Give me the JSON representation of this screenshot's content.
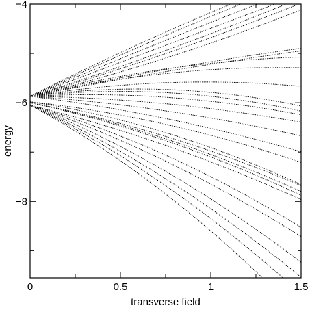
{
  "chart_data": {
    "type": "line",
    "title": "",
    "xlabel": "transverse field",
    "ylabel": "energy",
    "xlim": [
      0,
      1.5
    ],
    "ylim": [
      -9.55,
      -4.0
    ],
    "x_ticks": [
      {
        "value": 0,
        "label": "0"
      },
      {
        "value": 0.5,
        "label": "0.5"
      },
      {
        "value": 1,
        "label": "1"
      },
      {
        "value": 1.5,
        "label": "1.5"
      }
    ],
    "x_minor_ticks": [
      0.25,
      0.75,
      1.25
    ],
    "y_ticks": [
      {
        "value": -4,
        "label": "−4"
      },
      {
        "value": -6,
        "label": "−6"
      },
      {
        "value": -8,
        "label": "−8"
      }
    ],
    "y_minor_ticks": [
      -5,
      -7,
      -9
    ],
    "grid": false,
    "line_style": "dotted",
    "line_color": "#000000",
    "curve_model": "energy(x) = e0 + a*x + b*x^2",
    "series": [
      {
        "e0": -5.87,
        "a": 1.85,
        "b": -0.15
      },
      {
        "e0": -5.87,
        "a": 1.72,
        "b": -0.1
      },
      {
        "e0": -5.87,
        "a": 1.55,
        "b": -0.05
      },
      {
        "e0": -5.87,
        "a": 1.38,
        "b": 0.0
      },
      {
        "e0": -5.87,
        "a": 1.15,
        "b": 0.12
      },
      {
        "e0": -5.87,
        "a": 1.05,
        "b": 0.14
      },
      {
        "e0": -5.87,
        "a": 0.9,
        "b": 0.18
      },
      {
        "e0": -5.87,
        "a": 0.8,
        "b": -0.1
      },
      {
        "e0": -5.87,
        "a": 0.72,
        "b": -0.07
      },
      {
        "e0": -5.87,
        "a": 0.95,
        "b": -0.28
      },
      {
        "e0": -5.87,
        "a": 0.85,
        "b": -0.31
      },
      {
        "e0": -5.87,
        "a": 0.6,
        "b": -0.31
      },
      {
        "e0": -5.87,
        "a": 0.5,
        "b": -0.42
      },
      {
        "e0": -5.87,
        "a": 0.4,
        "b": -0.4
      },
      {
        "e0": -5.87,
        "a": 0.2,
        "b": -0.3
      },
      {
        "e0": -5.87,
        "a": -0.05,
        "b": -0.2
      },
      {
        "e0": -5.87,
        "a": -0.25,
        "b": -0.19
      },
      {
        "e0": -5.87,
        "a": -0.45,
        "b": -0.2
      },
      {
        "e0": -5.98,
        "a": -0.4,
        "b": -0.28
      },
      {
        "e0": -5.98,
        "a": -0.55,
        "b": -0.38
      },
      {
        "e0": -6.0,
        "a": -0.7,
        "b": -0.28
      },
      {
        "e0": -6.0,
        "a": -0.75,
        "b": -0.3
      },
      {
        "e0": -6.0,
        "a": -0.8,
        "b": -0.3
      },
      {
        "e0": -6.05,
        "a": -0.9,
        "b": -0.25
      },
      {
        "e0": -6.05,
        "a": -1.05,
        "b": -0.4
      },
      {
        "e0": -6.05,
        "a": -1.25,
        "b": -0.35
      },
      {
        "e0": -6.05,
        "a": -1.45,
        "b": -0.45
      },
      {
        "e0": -6.05,
        "a": -1.65,
        "b": -0.45
      },
      {
        "e0": -6.05,
        "a": -1.8,
        "b": -0.5
      },
      {
        "e0": -6.05,
        "a": -1.95,
        "b": -0.6
      }
    ]
  }
}
